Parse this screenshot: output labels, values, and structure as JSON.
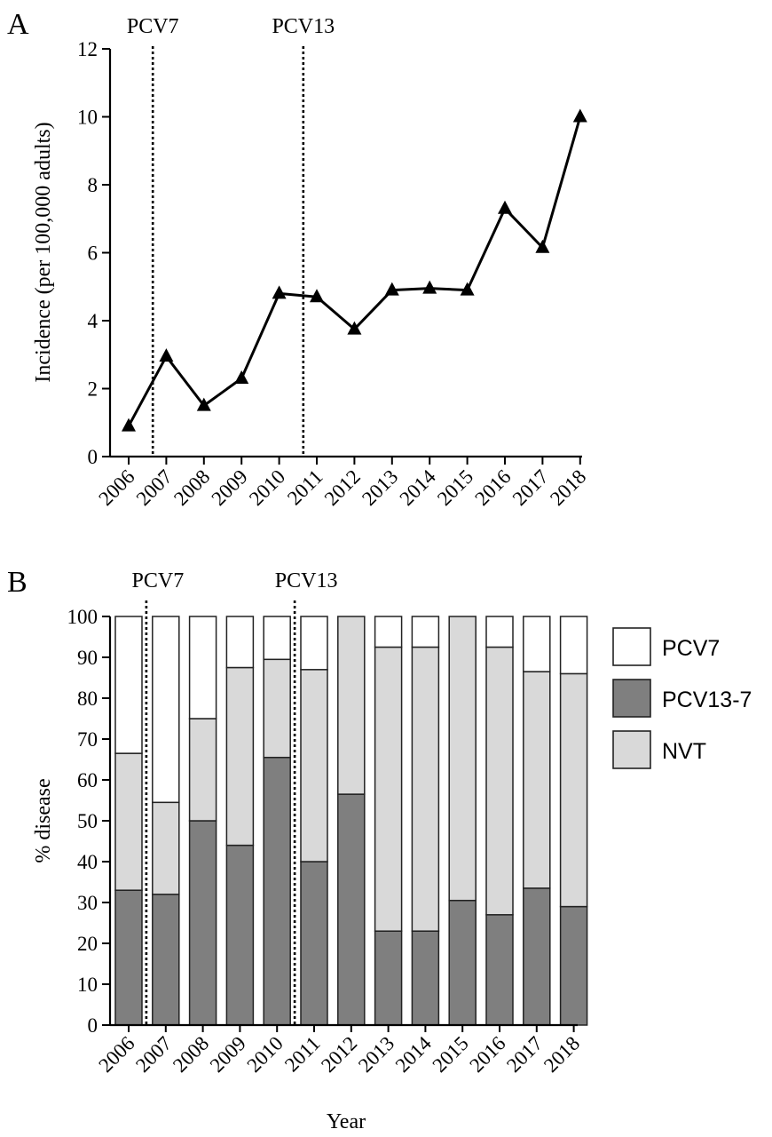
{
  "chart_data": [
    {
      "panel": "A",
      "type": "line",
      "xlabel": "",
      "ylabel": "Incidence (per 100,000 adults)",
      "ylim": [
        0,
        12
      ],
      "yticks": [
        0,
        2,
        4,
        6,
        8,
        10,
        12
      ],
      "categories": [
        "2006",
        "2007",
        "2008",
        "2009",
        "2010",
        "2011",
        "2012",
        "2013",
        "2014",
        "2015",
        "2016",
        "2017",
        "2018"
      ],
      "series": [
        {
          "values": [
            0.9,
            2.95,
            1.5,
            2.3,
            4.8,
            4.7,
            3.75,
            4.9,
            4.95,
            4.9,
            7.3,
            6.15,
            10.0
          ]
        }
      ],
      "marker": "triangle",
      "line_color": "#000000",
      "annotations": [
        {
          "text": "PCV7",
          "between": [
            "2006",
            "2007"
          ]
        },
        {
          "text": "PCV13",
          "between": [
            "2010",
            "2011"
          ]
        }
      ],
      "grid": false
    },
    {
      "panel": "B",
      "type": "bar",
      "stacked": true,
      "xlabel": "Year",
      "ylabel": "% disease",
      "ylim": [
        0,
        100
      ],
      "yticks": [
        0,
        10,
        20,
        30,
        40,
        50,
        60,
        70,
        80,
        90,
        100
      ],
      "categories": [
        "2006",
        "2007",
        "2008",
        "2009",
        "2010",
        "2011",
        "2012",
        "2013",
        "2014",
        "2015",
        "2016",
        "2017",
        "2018"
      ],
      "series": [
        {
          "name": "PCV13-7",
          "color": "#7f7f7f",
          "values": [
            33,
            32,
            50,
            44,
            65.5,
            40,
            56.5,
            23,
            23,
            30.5,
            27,
            33.5,
            29
          ]
        },
        {
          "name": "NVT",
          "color": "#d9d9d9",
          "values": [
            33.5,
            22.5,
            25,
            43.5,
            24,
            47,
            43.5,
            69.5,
            69.5,
            69.5,
            65.5,
            53,
            57
          ]
        },
        {
          "name": "PCV7",
          "color": "#ffffff",
          "values": [
            33.5,
            45.5,
            25,
            12.5,
            10.5,
            13,
            0,
            7.5,
            7.5,
            0,
            7.5,
            13.5,
            14
          ]
        }
      ],
      "legend": {
        "placement": "right",
        "items": [
          {
            "name": "PCV7",
            "color": "#ffffff"
          },
          {
            "name": "PCV13-7",
            "color": "#7f7f7f"
          },
          {
            "name": "NVT",
            "color": "#d9d9d9"
          }
        ]
      },
      "annotations": [
        {
          "text": "PCV7",
          "between": [
            "2006",
            "2007"
          ]
        },
        {
          "text": "PCV13",
          "between": [
            "2010",
            "2011"
          ]
        }
      ],
      "grid": false
    }
  ],
  "panels": {
    "a_label": "A",
    "b_label": "B"
  }
}
